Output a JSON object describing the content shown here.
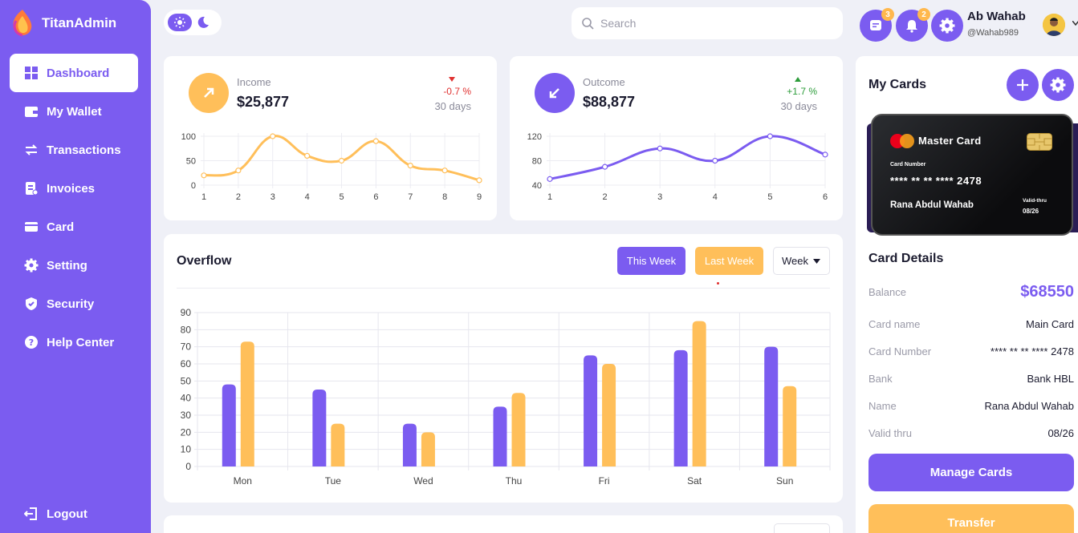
{
  "brand": {
    "name": "TitanAdmin"
  },
  "sidebar": {
    "items": [
      {
        "label": "Dashboard"
      },
      {
        "label": "My Wallet"
      },
      {
        "label": "Transactions"
      },
      {
        "label": "Invoices"
      },
      {
        "label": "Card"
      },
      {
        "label": "Setting"
      },
      {
        "label": "Security"
      },
      {
        "label": "Help Center"
      }
    ],
    "logout_label": "Logout"
  },
  "topbar": {
    "search_placeholder": "Search",
    "messages_count": "3",
    "notifications_count": "2",
    "user_name": "Ab Wahab",
    "user_handle": "@Wahab989"
  },
  "income": {
    "label": "Income",
    "value": "$25,877",
    "change": "-0.7 %",
    "period": "30 days"
  },
  "outcome": {
    "label": "Outcome",
    "value": "$88,877",
    "change": "+1.7 %",
    "period": "30 days"
  },
  "overflow": {
    "title": "Overflow",
    "this_week_label": "This Week",
    "last_week_label": "Last Week",
    "select_value": "Week"
  },
  "my_cards": {
    "title": "My Cards",
    "card_brand": "Master Card",
    "card_number_label": "Card Number",
    "card_number": "**** ** ** **** 2478",
    "card_holder": "Rana Abdul Wahab",
    "valid_label": "Valid-thru",
    "valid_value": "08/26"
  },
  "card_details": {
    "title": "Card Details",
    "balance_label": "Balance",
    "balance_value": "$68550",
    "rows": [
      {
        "label": "Card name",
        "value": "Main Card"
      },
      {
        "label": "Card Number",
        "value": "**** ** ** **** 2478"
      },
      {
        "label": "Bank",
        "value": "Bank HBL"
      },
      {
        "label": "Name",
        "value": "Rana Abdul Wahab"
      },
      {
        "label": "Valid thru",
        "value": "08/26"
      }
    ],
    "manage_label": "Manage Cards",
    "transfer_label": "Transfer"
  },
  "colors": {
    "purple": "#7b5cf0",
    "orange": "#ffbf5a",
    "red": "#e0302f",
    "green": "#2c9c3a"
  },
  "chart_data": [
    {
      "type": "line",
      "title": "Income",
      "x": [
        1,
        2,
        3,
        4,
        5,
        6,
        7,
        8,
        9
      ],
      "values": [
        20,
        30,
        100,
        60,
        50,
        90,
        40,
        30,
        10
      ],
      "ylim": [
        0,
        100
      ],
      "yticks": [
        0,
        50,
        100
      ],
      "color": "#ffbf5a"
    },
    {
      "type": "line",
      "title": "Outcome",
      "x": [
        1,
        2,
        3,
        4,
        5,
        6
      ],
      "values": [
        50,
        70,
        100,
        80,
        120,
        90
      ],
      "ylim": [
        40,
        120
      ],
      "yticks": [
        40,
        80,
        120
      ],
      "color": "#7b5cf0"
    },
    {
      "type": "bar",
      "title": "Overflow",
      "categories": [
        "Mon",
        "Tue",
        "Wed",
        "Thu",
        "Fri",
        "Sat",
        "Sun"
      ],
      "series": [
        {
          "name": "This Week",
          "values": [
            48,
            45,
            25,
            35,
            65,
            68,
            70
          ],
          "color": "#7b5cf0"
        },
        {
          "name": "Last Week",
          "values": [
            73,
            25,
            20,
            43,
            60,
            85,
            47
          ],
          "color": "#ffbf5a"
        }
      ],
      "ylim": [
        0,
        90
      ],
      "yticks": [
        0,
        10,
        20,
        30,
        40,
        50,
        60,
        70,
        80,
        90
      ],
      "grid": true
    }
  ]
}
